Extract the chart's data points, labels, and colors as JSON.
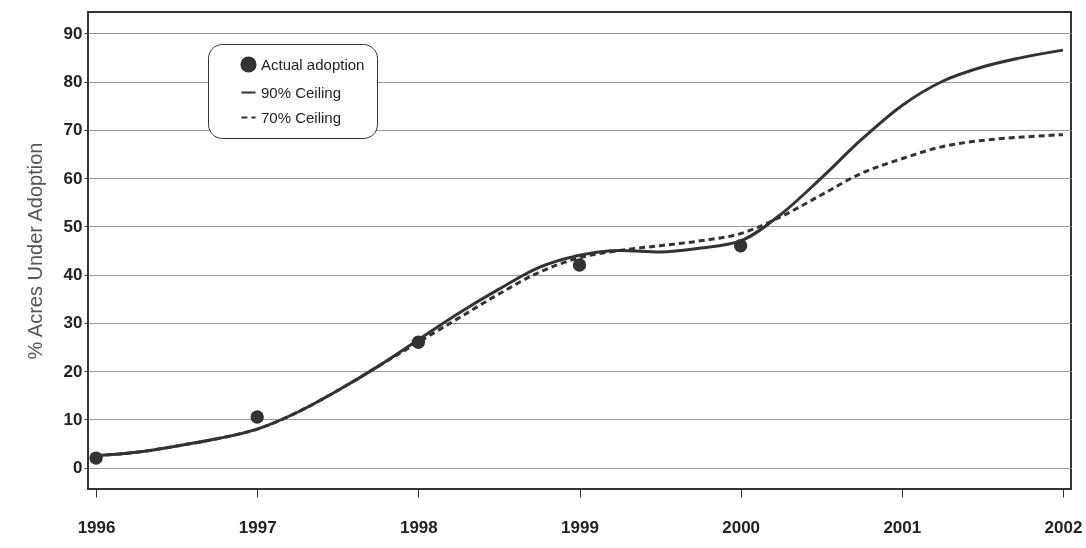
{
  "chart_data": {
    "type": "line",
    "ylabel": "% Acres Under Adoption",
    "xlim": [
      1995.95,
      2002.05
    ],
    "xticks": [
      {
        "value": 1996,
        "label": "1996"
      },
      {
        "value": 1997,
        "label": "1997"
      },
      {
        "value": 1998,
        "label": "1998"
      },
      {
        "value": 1999,
        "label": "1999"
      },
      {
        "value": 2000,
        "label": "2000"
      },
      {
        "value": 2001,
        "label": "2001"
      },
      {
        "value": 2002,
        "label": "2002"
      }
    ],
    "ylim": [
      -4.4,
      94.4
    ],
    "yticks": [
      0,
      10,
      20,
      30,
      40,
      50,
      60,
      70,
      80,
      90
    ],
    "grid": "y",
    "legend": "top left",
    "series": [
      {
        "name": "Actual adoption",
        "type": "scatter",
        "marker": "circle",
        "color": "#333333",
        "x": [
          1996,
          1997,
          1998,
          1999,
          2000
        ],
        "values": [
          2,
          10.5,
          26,
          42,
          46
        ]
      },
      {
        "name": "90% Ceiling",
        "line_style": "solid",
        "color": "#333333",
        "x": [
          1996,
          1996.25,
          1996.5,
          1996.75,
          1997,
          1997.25,
          1997.5,
          1997.75,
          1998,
          1998.25,
          1998.5,
          1998.75,
          1999,
          1999.25,
          1999.5,
          1999.75,
          2000,
          2000.25,
          2000.5,
          2000.75,
          2001,
          2001.25,
          2001.5,
          2001.75,
          2002
        ],
        "values": [
          2.5,
          3.2,
          4.5,
          6,
          8,
          11.5,
          16,
          21,
          26.5,
          32,
          37,
          41.5,
          44,
          45,
          44.7,
          45.5,
          47,
          52.5,
          60,
          68,
          75,
          80,
          83,
          85,
          86.5
        ]
      },
      {
        "name": "70% Ceiling",
        "line_style": "dashed",
        "color": "#333333",
        "x": [
          1996,
          1996.25,
          1996.5,
          1996.75,
          1997,
          1997.25,
          1997.5,
          1997.75,
          1998,
          1998.25,
          1998.5,
          1998.75,
          1999,
          1999.25,
          1999.5,
          1999.75,
          2000,
          2000.25,
          2000.5,
          2000.75,
          2001,
          2001.25,
          2001.5,
          2001.75,
          2002
        ],
        "values": [
          2.5,
          3.2,
          4.5,
          6,
          8,
          11.5,
          16,
          21,
          26,
          31,
          36,
          40.5,
          43.5,
          45,
          46,
          47,
          48.5,
          52,
          56.5,
          61,
          64,
          66.5,
          67.8,
          68.5,
          69
        ]
      }
    ]
  }
}
